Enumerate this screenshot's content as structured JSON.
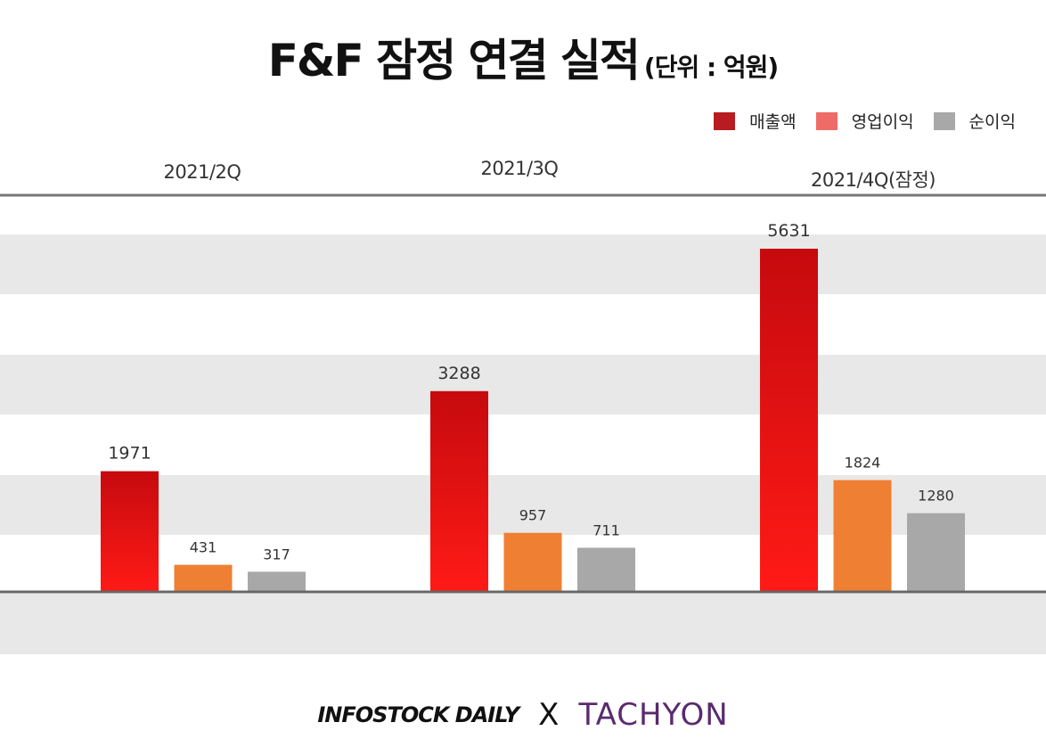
{
  "header": {
    "title": "F&F 잠정 연결 실적",
    "unit": "(단위 : 억원)"
  },
  "legend": [
    {
      "label": "매출액",
      "color": "#b81c22"
    },
    {
      "label": "영업이익",
      "color": "#ee6b67"
    },
    {
      "label": "순이익",
      "color": "#a8a8a8"
    }
  ],
  "footer": {
    "brand_a": "INFOSTOCK DAILY",
    "separator": "X",
    "brand_b": "TACHYON"
  },
  "chart_data": {
    "type": "bar",
    "categories": [
      "2021/2Q",
      "2021/3Q",
      "2021/4Q(잠정)"
    ],
    "series": [
      {
        "name": "매출액",
        "values": [
          1971,
          3288,
          5631
        ],
        "color": "#e3141a"
      },
      {
        "name": "영업이익",
        "values": [
          431,
          957,
          1824
        ],
        "color": "#ef8033"
      },
      {
        "name": "순이익",
        "values": [
          317,
          711,
          1280
        ],
        "color": "#a8a8a8"
      }
    ],
    "ylim": [
      0,
      6500
    ],
    "grid": true,
    "legend_position": "top-right",
    "data_labels": true
  }
}
